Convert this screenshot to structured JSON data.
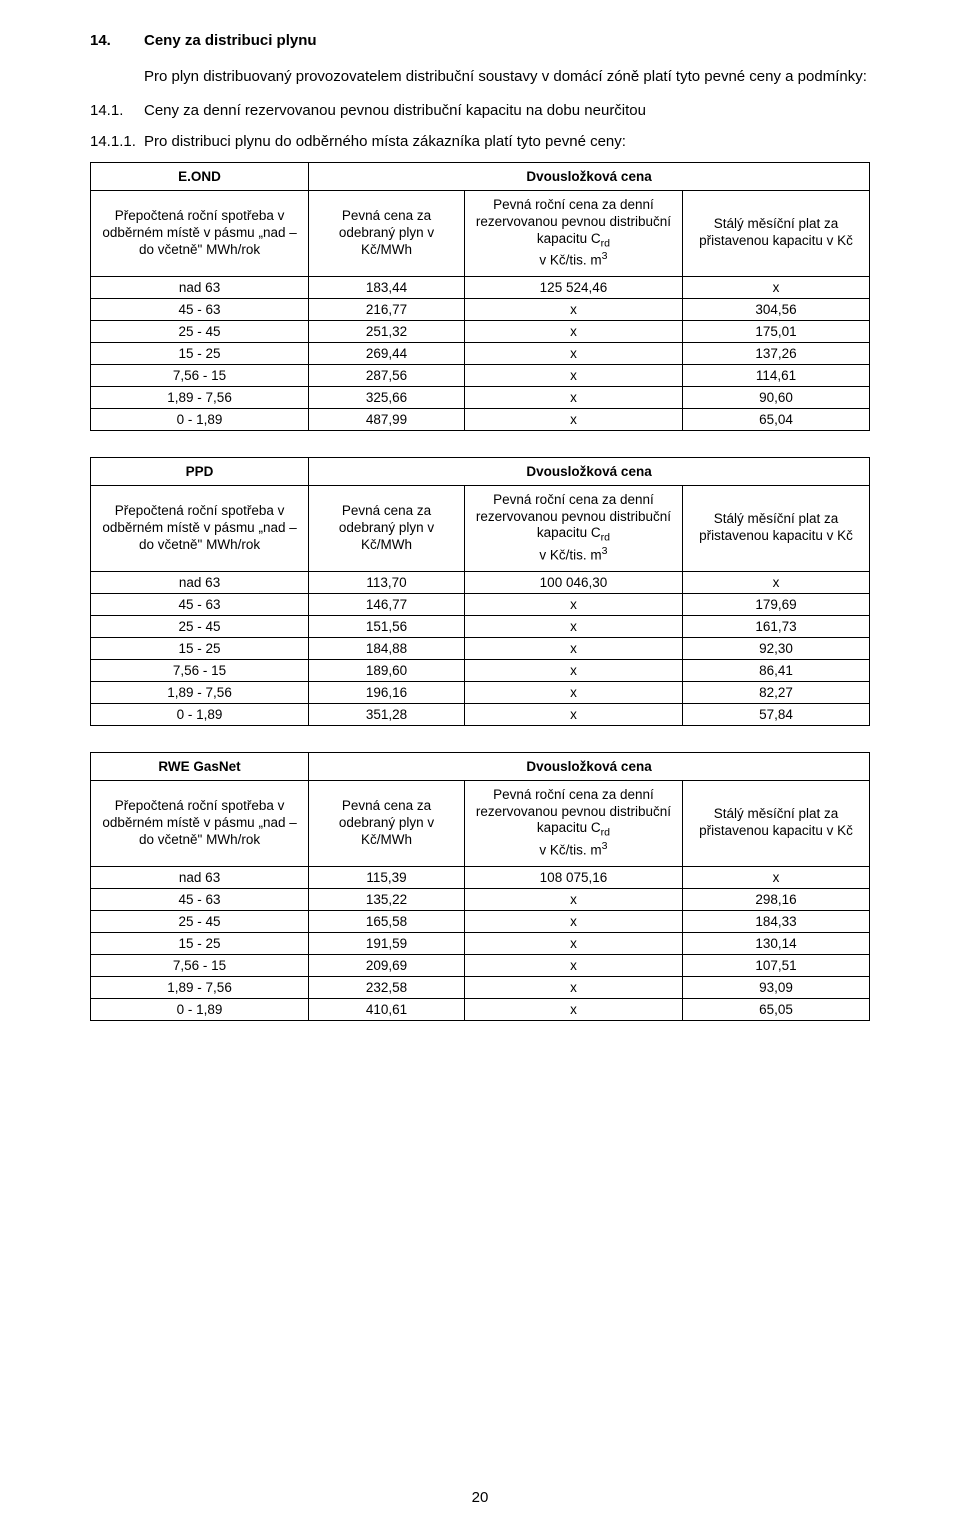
{
  "section": {
    "number": "14.",
    "title": "Ceny za distribuci plynu",
    "intro": "Pro plyn distribuovaný provozovatelem distribuční soustavy v domácí zóně platí tyto pevné ceny a podmínky:"
  },
  "sub1": {
    "number": "14.1.",
    "text": "Ceny za denní rezervovanou pevnou distribuční kapacitu na dobu neurčitou"
  },
  "sub2": {
    "number": "14.1.1.",
    "text": "Pro distribuci plynu do odběrného místa zákazníka platí tyto pevné ceny:"
  },
  "columns": {
    "left_label": "Přepočtená roční spotřeba v odběrném místě v pásmu „nad – do včetně\" MWh/rok",
    "right_title": "Dvousložková cena",
    "c1": "Pevná cena za odebraný plyn v Kč/MWh",
    "c2_l1": "Pevná roční cena za denní rezervovanou pevnou distribuční kapacitu C",
    "c2_sub": "rd",
    "c2_l2": "v Kč/tis. m",
    "c2_sup": "3",
    "c3": "Stálý měsíční plat za přistavenou kapacitu v Kč"
  },
  "tables": [
    {
      "name": "E.OND",
      "rows": [
        [
          "nad 63",
          "183,44",
          "125 524,46",
          "x"
        ],
        [
          "45 - 63",
          "216,77",
          "x",
          "304,56"
        ],
        [
          "25 - 45",
          "251,32",
          "x",
          "175,01"
        ],
        [
          "15 - 25",
          "269,44",
          "x",
          "137,26"
        ],
        [
          "7,56 - 15",
          "287,56",
          "x",
          "114,61"
        ],
        [
          "1,89 - 7,56",
          "325,66",
          "x",
          "90,60"
        ],
        [
          "0 - 1,89",
          "487,99",
          "x",
          "65,04"
        ]
      ]
    },
    {
      "name": "PPD",
      "rows": [
        [
          "nad 63",
          "113,70",
          "100 046,30",
          "x"
        ],
        [
          "45 - 63",
          "146,77",
          "x",
          "179,69"
        ],
        [
          "25 - 45",
          "151,56",
          "x",
          "161,73"
        ],
        [
          "15 - 25",
          "184,88",
          "x",
          "92,30"
        ],
        [
          "7,56 - 15",
          "189,60",
          "x",
          "86,41"
        ],
        [
          "1,89 - 7,56",
          "196,16",
          "x",
          "82,27"
        ],
        [
          "0 - 1,89",
          "351,28",
          "x",
          "57,84"
        ]
      ]
    },
    {
      "name": "RWE GasNet",
      "rows": [
        [
          "nad 63",
          "115,39",
          "108 075,16",
          "x"
        ],
        [
          "45 - 63",
          "135,22",
          "x",
          "298,16"
        ],
        [
          "25 - 45",
          "165,58",
          "x",
          "184,33"
        ],
        [
          "15 - 25",
          "191,59",
          "x",
          "130,14"
        ],
        [
          "7,56 - 15",
          "209,69",
          "x",
          "107,51"
        ],
        [
          "1,89 - 7,56",
          "232,58",
          "x",
          "93,09"
        ],
        [
          "0 - 1,89",
          "410,61",
          "x",
          "65,05"
        ]
      ]
    }
  ],
  "page_number": "20"
}
